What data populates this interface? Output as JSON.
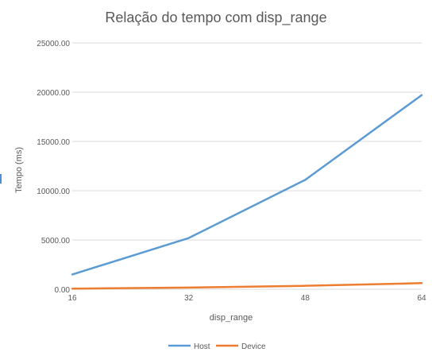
{
  "chart_data": {
    "type": "line",
    "title": "Relação do tempo com disp_range",
    "xlabel": "disp_range",
    "ylabel": "Tempo (ms)",
    "x": [
      16,
      32,
      48,
      64
    ],
    "x_tick_labels": [
      "16",
      "32",
      "48",
      "64"
    ],
    "y_tick_labels": [
      "0.00",
      "5000.00",
      "10000.00",
      "15000.00",
      "20000.00",
      "25000.00"
    ],
    "ylim": [
      0,
      25000
    ],
    "grid": true,
    "legend_position": "bottom",
    "series": [
      {
        "name": "Host",
        "color": "#5b9bd5",
        "values": [
          1500,
          5200,
          11100,
          19700
        ]
      },
      {
        "name": "Device",
        "color": "#ed7d31",
        "values": [
          60,
          170,
          350,
          620
        ]
      }
    ]
  }
}
